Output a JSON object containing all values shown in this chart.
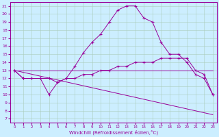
{
  "xlabel": "Windchill (Refroidissement éolien,°C)",
  "bg_color": "#cceeff",
  "line_color": "#990099",
  "grid_color": "#aaccbb",
  "xlim": [
    -0.5,
    23.5
  ],
  "ylim": [
    6.5,
    21.5
  ],
  "yticks": [
    7,
    8,
    9,
    10,
    11,
    12,
    13,
    14,
    15,
    16,
    17,
    18,
    19,
    20,
    21
  ],
  "xticks": [
    0,
    1,
    2,
    3,
    4,
    5,
    6,
    7,
    8,
    9,
    10,
    11,
    12,
    13,
    14,
    15,
    16,
    17,
    18,
    19,
    20,
    21,
    22,
    23
  ],
  "line1_x": [
    0,
    1,
    2,
    3,
    4,
    5,
    6,
    7,
    8,
    9,
    10,
    11,
    12,
    13,
    14,
    15,
    16,
    17,
    18,
    19,
    20,
    21,
    22,
    23
  ],
  "line1_y": [
    13,
    12,
    12,
    12,
    10,
    11.5,
    12,
    13.5,
    15.2,
    16.5,
    17.5,
    19,
    20.5,
    21,
    21,
    19.5,
    19,
    16.5,
    15,
    15,
    14,
    12.5,
    12,
    10
  ],
  "line2_x": [
    0,
    1,
    2,
    3,
    4,
    5,
    6,
    7,
    8,
    9,
    10,
    11,
    12,
    13,
    14,
    15,
    16,
    17,
    18,
    19,
    20,
    21,
    22,
    23
  ],
  "line2_y": [
    13,
    12,
    12,
    12,
    12,
    11.5,
    12,
    12,
    12.5,
    12.5,
    13,
    13,
    13.5,
    13.5,
    14,
    14,
    14,
    14.5,
    14.5,
    14.5,
    14.5,
    13,
    12.5,
    10
  ],
  "line3_x": [
    0,
    23
  ],
  "line3_y": [
    13,
    13
  ],
  "line4_x": [
    0,
    23
  ],
  "line4_y": [
    13,
    7.5
  ]
}
